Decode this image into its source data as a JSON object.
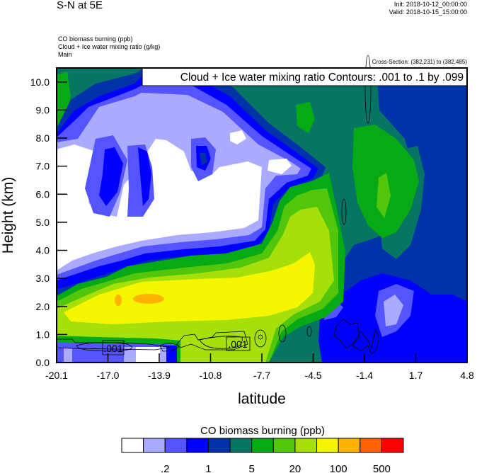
{
  "header": {
    "title": "S-N at 5E",
    "init": "Init: 2018-10-12_00:00:00",
    "valid": "Valid: 2018-10-15_15:00:00",
    "field1": "CO biomass burning   (ppb)",
    "field2": "Cloud + Ice water mixing ratio   (g/kg)",
    "field3": "Main",
    "cross_section": "Cross-Section: (382,231) to (382,485)"
  },
  "chart_data": {
    "type": "heatmap",
    "subtype": "filled contour cross-section with line contours",
    "contour_label": "Cloud + Ice water mixing ratio Contours: .001 to .1 by .099",
    "xlabel": "latitude",
    "ylabel": "Height (km)",
    "xlim": [
      -20.1,
      4.8
    ],
    "ylim": [
      0,
      10.5
    ],
    "x_ticks": [
      "-20.1",
      "-17.0",
      "-13.9",
      "-10.8",
      "-7.7",
      "-4.5",
      "-1.4",
      "1.7",
      "4.8"
    ],
    "y_ticks": [
      "0.0",
      "1.0",
      "2.0",
      "3.0",
      "4.0",
      "5.0",
      "6.0",
      "7.0",
      "8.0",
      "9.0",
      "10.0"
    ],
    "line_contour_labels": [
      ".001",
      ".001"
    ],
    "colorbar": {
      "title": "CO biomass burning  (ppb)",
      "colors": [
        "#ffffff",
        "#aaaaff",
        "#5555ff",
        "#0000ff",
        "#0033aa",
        "#067563",
        "#07aa14",
        "#52c60c",
        "#a5e00a",
        "#f5f500",
        "#ffb300",
        "#ff6300",
        "#ff0000"
      ],
      "labels": [
        ".2",
        "1",
        "5",
        "20",
        "100",
        "500"
      ],
      "label_boundaries": [
        2,
        4,
        6,
        8,
        10,
        12
      ]
    }
  }
}
